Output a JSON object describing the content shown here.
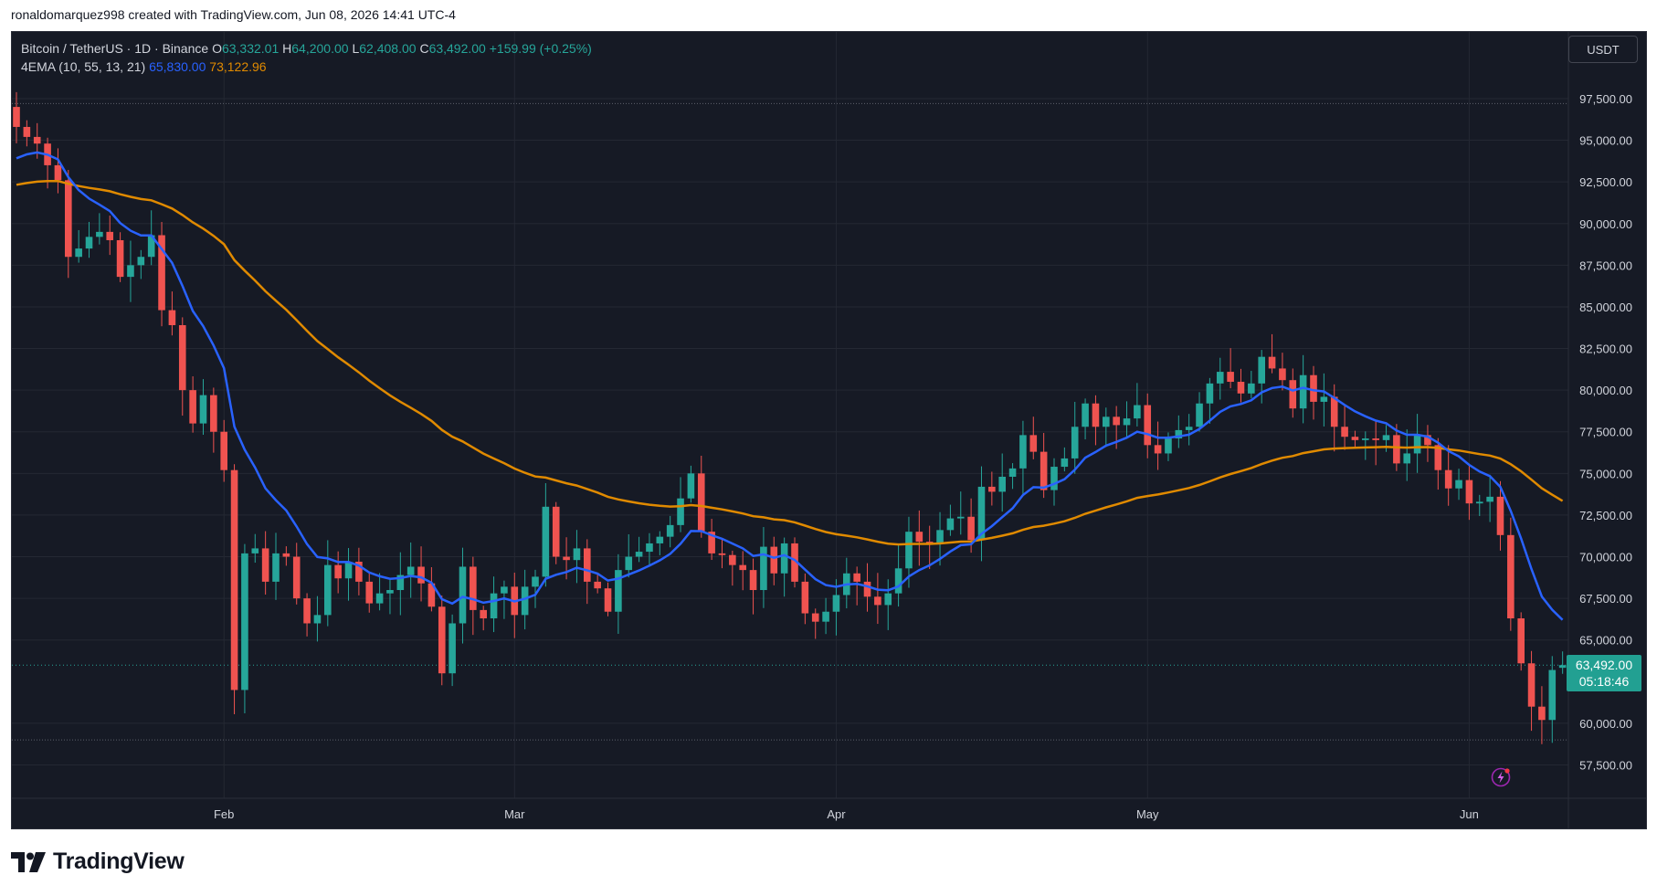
{
  "caption": "ronaldomarquez998 created with TradingView.com, Jun 08, 2026 14:41 UTC-4",
  "legend": {
    "symbol": "Bitcoin / TetherUS · 1D · Binance",
    "o_label": "O",
    "o_value": "63,332.01",
    "h_label": "H",
    "h_value": "64,200.00",
    "l_label": "L",
    "l_value": "62,408.00",
    "c_label": "C",
    "c_value": "63,492.00",
    "change": "+159.99 (+0.25%)",
    "indicator": "4EMA (10, 55, 13, 21)",
    "ema_fast_value": "65,830.00",
    "ema_slow_value": "73,122.96"
  },
  "currency": "USDT",
  "last_price": {
    "price": "63,492.00",
    "countdown": "05:18:46"
  },
  "brand": "TradingView",
  "colors": {
    "background": "#161a25",
    "grid": "#242833",
    "up": "#26a69a",
    "down": "#ef5350",
    "ema_fast": "#2962ff",
    "ema_slow": "#e08a00",
    "axis_text": "#d1d4dc"
  },
  "chart_data": {
    "type": "candlestick",
    "y_ticks": [
      "97,500.00",
      "95,000.00",
      "92,500.00",
      "90,000.00",
      "87,500.00",
      "85,000.00",
      "82,500.00",
      "80,000.00",
      "77,500.00",
      "75,000.00",
      "72,500.00",
      "70,000.00",
      "67,500.00",
      "65,000.00",
      "60,000.00",
      "57,500.00"
    ],
    "y_tick_values": [
      97500,
      95000,
      92500,
      90000,
      87500,
      85000,
      82500,
      80000,
      77500,
      75000,
      72500,
      70000,
      67500,
      65000,
      60000,
      57500
    ],
    "x_ticks": [
      {
        "label": "Feb",
        "index": 20
      },
      {
        "label": "Mar",
        "index": 48
      },
      {
        "label": "Apr",
        "index": 79
      },
      {
        "label": "May",
        "index": 109
      },
      {
        "label": "Jun",
        "index": 140
      }
    ],
    "ylim": [
      55500,
      101500
    ],
    "dotted_levels": [
      97200,
      59000
    ],
    "current_price": 63492,
    "closes": [
      95800,
      95200,
      94800,
      93500,
      92600,
      88000,
      88500,
      89200,
      89500,
      89000,
      86800,
      87500,
      88000,
      89300,
      84800,
      83900,
      80000,
      78000,
      79700,
      77500,
      75200,
      62000,
      70200,
      70500,
      68500,
      70200,
      70000,
      67500,
      66000,
      66500,
      69500,
      68700,
      69700,
      68500,
      67200,
      67800,
      68000,
      68900,
      69400,
      68400,
      67000,
      63000,
      66000,
      69400,
      66800,
      66300,
      67800,
      68200,
      66500,
      68200,
      68800,
      73000,
      70000,
      69800,
      70500,
      68500,
      68100,
      66700,
      69200,
      70000,
      70300,
      70800,
      71200,
      71900,
      73500,
      75000,
      71500,
      70200,
      70100,
      69500,
      69200,
      68000,
      70600,
      69000,
      70800,
      68500,
      66600,
      66100,
      66700,
      67700,
      69000,
      68500,
      67600,
      67100,
      67800,
      69300,
      71500,
      70900,
      70800,
      71600,
      72300,
      72400,
      71000,
      74200,
      73900,
      74800,
      75300,
      77300,
      76300,
      74000,
      75400,
      75900,
      77800,
      79200,
      77800,
      78400,
      77900,
      78300,
      79100,
      76700,
      76200,
      77100,
      77600,
      77800,
      79200,
      80400,
      81100,
      80500,
      79800,
      80400,
      82000,
      81300,
      80600,
      78900,
      80900,
      79300,
      79600,
      77800,
      77200,
      77000,
      77100,
      77000,
      77300,
      75600,
      76200,
      77300,
      76700,
      75200,
      74100,
      74600,
      73200,
      73300,
      73600,
      71300,
      66300,
      63600,
      61000,
      60200,
      63200,
      63492
    ]
  }
}
